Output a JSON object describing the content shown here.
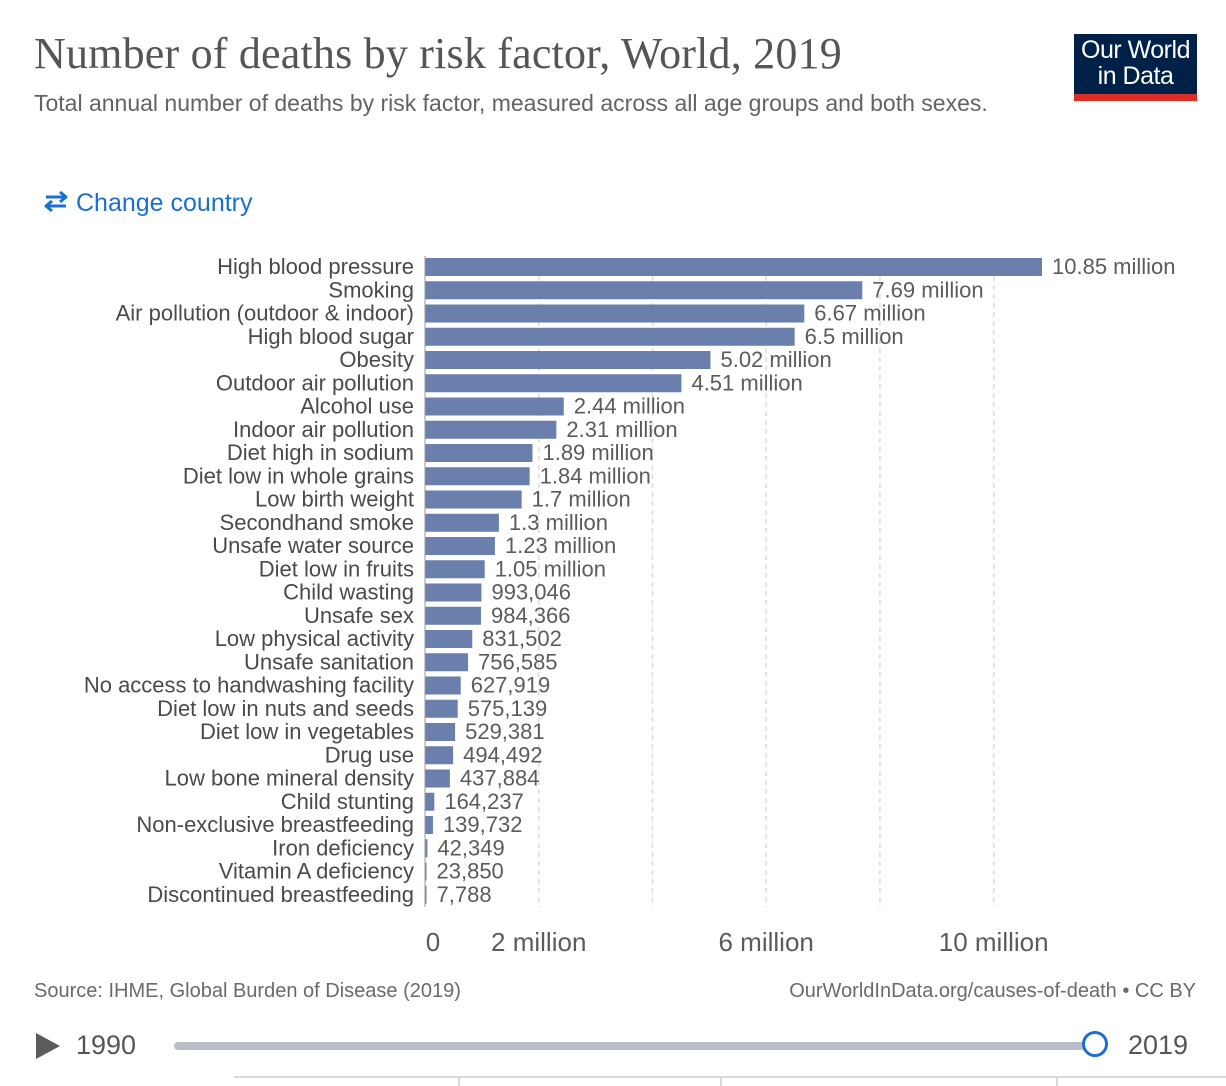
{
  "header": {
    "title": "Number of deaths by risk factor, World, 2019",
    "subtitle": "Total annual number of deaths by risk factor, measured across all age groups and both sexes."
  },
  "logo": {
    "text": "Our World\nin Data",
    "bg_color": "#002147",
    "accent_color": "#dc2d27"
  },
  "controls": {
    "change_country_label": "Change country",
    "icon": "swap-arrows-icon"
  },
  "colors": {
    "bar": "#6a7fac",
    "grid": "#dddddd",
    "link": "#1a6fd1"
  },
  "chart_data": {
    "type": "bar",
    "orientation": "horizontal",
    "title": "Number of deaths by risk factor, World, 2019",
    "subtitle": "Total annual number of deaths by risk factor, measured across all age groups and both sexes.",
    "categories": [
      "High blood pressure",
      "Smoking",
      "Air pollution (outdoor & indoor)",
      "High blood sugar",
      "Obesity",
      "Outdoor air pollution",
      "Alcohol use",
      "Indoor air pollution",
      "Diet high in sodium",
      "Diet low in whole grains",
      "Low birth weight",
      "Secondhand smoke",
      "Unsafe water source",
      "Diet low in fruits",
      "Child wasting",
      "Unsafe sex",
      "Low physical activity",
      "Unsafe sanitation",
      "No access to handwashing facility",
      "Diet low in nuts and seeds",
      "Diet low in vegetables",
      "Drug use",
      "Low bone mineral density",
      "Child stunting",
      "Non-exclusive breastfeeding",
      "Iron deficiency",
      "Vitamin A deficiency",
      "Discontinued breastfeeding"
    ],
    "values": [
      10850000,
      7690000,
      6670000,
      6500000,
      5020000,
      4510000,
      2440000,
      2310000,
      1890000,
      1840000,
      1700000,
      1300000,
      1230000,
      1050000,
      993046,
      984366,
      831502,
      756585,
      627919,
      575139,
      529381,
      494492,
      437884,
      164237,
      139732,
      42349,
      23850,
      7788
    ],
    "value_labels": [
      "10.85 million",
      "7.69 million",
      "6.67 million",
      "6.5 million",
      "5.02 million",
      "4.51 million",
      "2.44 million",
      "2.31 million",
      "1.89 million",
      "1.84 million",
      "1.7 million",
      "1.3 million",
      "1.23 million",
      "1.05 million",
      "993,046",
      "984,366",
      "831,502",
      "756,585",
      "627,919",
      "575,139",
      "529,381",
      "494,492",
      "437,884",
      "164,237",
      "139,732",
      "42,349",
      "23,850",
      "7,788"
    ],
    "x_ticks": [
      {
        "value": 0,
        "label": "0"
      },
      {
        "value": 2000000,
        "label": "2 million"
      },
      {
        "value": 6000000,
        "label": "6 million"
      },
      {
        "value": 10000000,
        "label": "10 million"
      }
    ],
    "gridlines": [
      2000000,
      4000000,
      6000000,
      8000000,
      10000000
    ],
    "xlim": [
      0,
      10850000
    ],
    "grid": true
  },
  "footer": {
    "source": "Source: IHME, Global Burden of Disease (2019)",
    "license": "OurWorldInData.org/causes-of-death • CC BY"
  },
  "timeline": {
    "start_year": "1990",
    "end_year": "2019",
    "selected_year": 2019
  }
}
